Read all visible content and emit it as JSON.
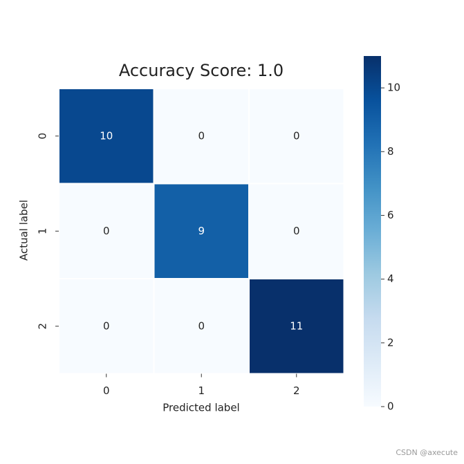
{
  "chart_data": {
    "type": "heatmap",
    "title": "Accuracy Score: 1.0",
    "xlabel": "Predicted label",
    "ylabel": "Actual label",
    "x_categories": [
      "0",
      "1",
      "2"
    ],
    "y_categories": [
      "0",
      "1",
      "2"
    ],
    "values": [
      [
        10,
        0,
        0
      ],
      [
        0,
        9,
        0
      ],
      [
        0,
        0,
        11
      ]
    ],
    "colormap": [
      "#f7fbff",
      "#deebf7",
      "#c6dbef",
      "#9ecae1",
      "#6baed6",
      "#4292c6",
      "#2171b5",
      "#08519c",
      "#08306b"
    ],
    "clim": [
      0,
      11
    ],
    "colorbar_ticks": [
      0,
      2,
      4,
      6,
      8,
      10
    ]
  },
  "watermark": "CSDN @axecute"
}
